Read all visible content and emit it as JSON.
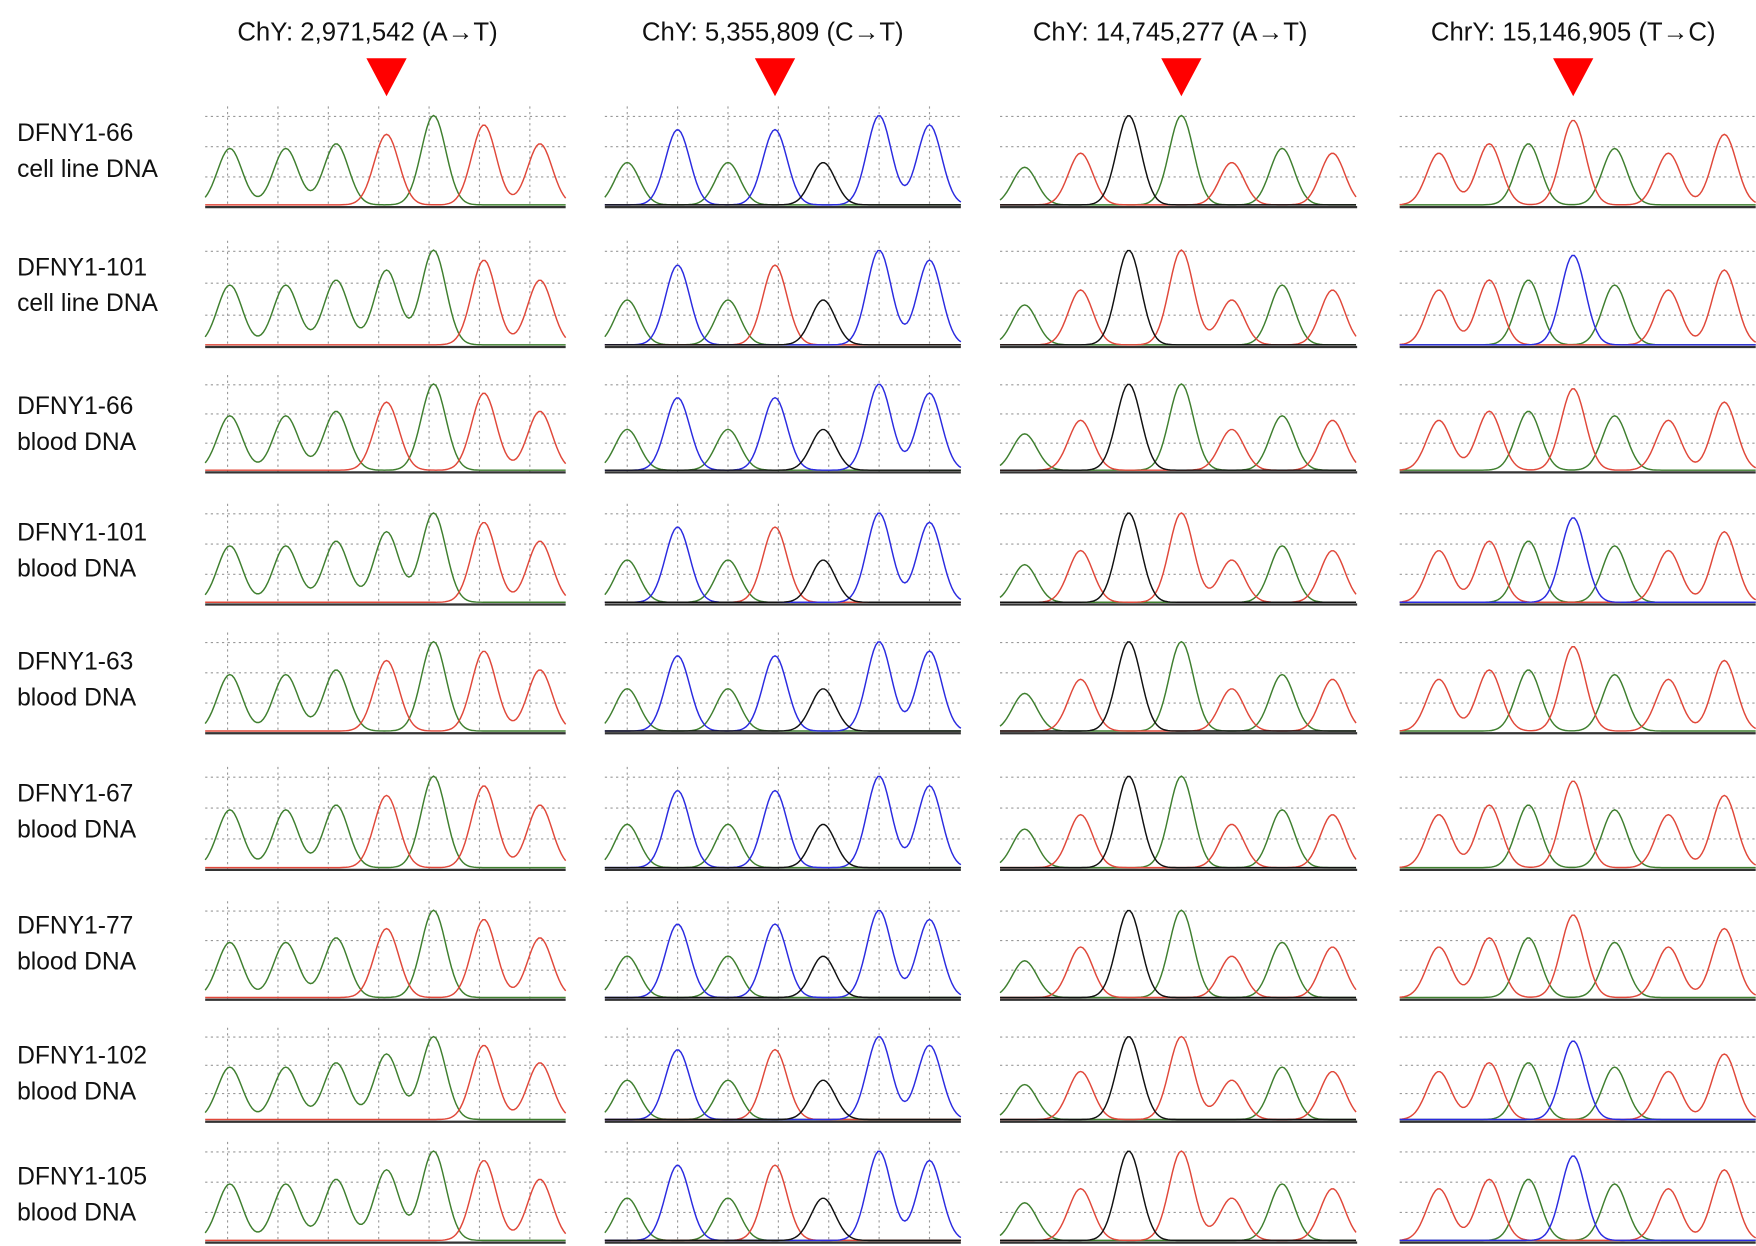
{
  "columns": [
    "ChY: 2,971,542 (A→T)",
    "ChY: 5,355,809 (C→T)",
    "ChY: 14,745,277 (A→T)",
    "ChrY: 15,146,905 (T→C)"
  ],
  "rows": [
    [
      "DFNY1-66",
      "cell line DNA"
    ],
    [
      "DFNY1-101",
      "cell line DNA"
    ],
    [
      "DFNY1-66",
      "blood DNA"
    ],
    [
      "DFNY1-101",
      "blood DNA"
    ],
    [
      "DFNY1-63",
      "blood DNA"
    ],
    [
      "DFNY1-67",
      "blood DNA"
    ],
    [
      "DFNY1-77",
      "blood DNA"
    ],
    [
      "DFNY1-102",
      "blood DNA"
    ],
    [
      "DFNY1-105",
      "blood DNA"
    ]
  ]
}
